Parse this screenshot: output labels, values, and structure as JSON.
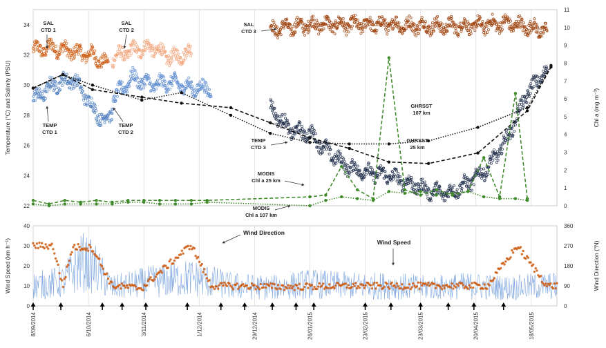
{
  "chart_data": [
    {
      "type": "scatter",
      "panel": "top",
      "ylabel_left": "Temperature (°C) and Salinity (PSU)",
      "ylabel_right": "Chl a (mg m⁻³)",
      "ylim_left": [
        22,
        35
      ],
      "ylim_right": [
        0,
        11
      ],
      "yticks_left": [
        "22",
        "24",
        "26",
        "28",
        "30",
        "32",
        "34"
      ],
      "yticks_right": [
        "0",
        "1",
        "2",
        "3",
        "4",
        "5",
        "6",
        "7",
        "8",
        "9",
        "10",
        "11"
      ],
      "xlim_days": [
        0,
        265
      ],
      "grid_vertical": true,
      "series": [
        {
          "name": "SAL CTD 1",
          "color": "#cc5a10",
          "x": [
            0,
            10,
            20,
            30,
            38
          ],
          "y": [
            32.3,
            32.5,
            32.2,
            32.0,
            31.3
          ]
        },
        {
          "name": "SAL CTD 2",
          "color": "#f2a57a",
          "x": [
            40,
            50,
            60,
            70,
            80
          ],
          "y": [
            31.8,
            32.3,
            32.5,
            31.8,
            32.2
          ]
        },
        {
          "name": "SAL CTD 3",
          "color": "#9c3e08",
          "x": [
            120,
            140,
            160,
            180,
            200,
            220,
            240,
            260
          ],
          "y": [
            33.7,
            34.0,
            34.0,
            34.0,
            33.9,
            33.9,
            34.1,
            33.6
          ]
        },
        {
          "name": "TEMP CTD 1",
          "color": "#4f7fbf",
          "x": [
            0,
            10,
            20,
            25,
            30,
            36,
            40
          ],
          "y": [
            29.0,
            30.0,
            30.4,
            29.6,
            28.5,
            27.6,
            28.2
          ]
        },
        {
          "name": "TEMP CTD 2",
          "color": "#5a8ad0",
          "x": [
            40,
            50,
            60,
            70,
            80,
            90
          ],
          "y": [
            29.0,
            30.5,
            30.0,
            30.2,
            29.8,
            29.8
          ]
        },
        {
          "name": "TEMP CTD 3",
          "color": "#1f2d4a",
          "x": [
            120,
            130,
            140,
            150,
            160,
            170,
            180,
            190,
            200,
            210,
            220,
            230,
            240,
            250,
            260
          ],
          "y": [
            28.5,
            27.0,
            26.8,
            25.5,
            24.5,
            24.2,
            24.0,
            23.5,
            23.0,
            22.8,
            23.5,
            24.5,
            26.5,
            29.5,
            31.0
          ]
        },
        {
          "name": "GHRSST 107 km",
          "color": "#111111",
          "style": "dotted",
          "x": [
            0,
            15,
            30,
            55,
            75,
            100,
            120,
            140,
            160,
            180,
            200,
            225,
            250,
            262
          ],
          "y": [
            29.8,
            30.7,
            30.0,
            29.0,
            29.5,
            28.0,
            26.8,
            26.2,
            26.1,
            26.1,
            26.3,
            27.2,
            28.5,
            31.3
          ]
        },
        {
          "name": "GHRSST 25 km",
          "color": "#111111",
          "style": "dashed",
          "x": [
            0,
            15,
            30,
            55,
            75,
            100,
            120,
            140,
            160,
            180,
            200,
            225,
            250,
            262
          ],
          "y": [
            29.8,
            30.7,
            29.7,
            29.2,
            28.8,
            28.5,
            27.5,
            26.5,
            25.8,
            24.9,
            24.8,
            25.5,
            28.3,
            31.2
          ]
        },
        {
          "name": "MODIS Chl a 25 km",
          "color": "#3f8a2a",
          "style": "dashed",
          "axis": "right",
          "x": [
            0,
            8,
            16,
            24,
            32,
            40,
            48,
            56,
            64,
            72,
            80,
            88,
            140,
            148,
            156,
            164,
            172,
            180,
            188,
            196,
            204,
            212,
            220,
            228,
            236,
            244,
            250
          ],
          "y": [
            0.3,
            0.1,
            0.3,
            0.2,
            0.3,
            0.2,
            0.3,
            0.3,
            0.3,
            0.3,
            0.3,
            0.3,
            0.5,
            0.6,
            2.2,
            0.9,
            0.4,
            8.3,
            0.9,
            0.6,
            0.9,
            0.6,
            0.8,
            2.7,
            0.5,
            6.3,
            0.4
          ]
        },
        {
          "name": "MODIS Chl a 107 km",
          "color": "#3f8a2a",
          "style": "dotted",
          "axis": "right",
          "x": [
            0,
            8,
            16,
            24,
            32,
            40,
            48,
            56,
            64,
            72,
            80,
            88,
            140,
            148,
            156,
            164,
            172,
            180,
            188,
            196,
            204,
            212,
            220,
            228,
            236,
            244,
            250
          ],
          "y": [
            0.1,
            0.0,
            0.1,
            0.1,
            0.1,
            0.1,
            0.2,
            0.2,
            0.1,
            0.1,
            0.1,
            0.2,
            0.0,
            0.3,
            0.5,
            0.4,
            0.3,
            0.8,
            0.7,
            0.8,
            0.6,
            0.7,
            0.8,
            0.5,
            0.4,
            0.4,
            0.3
          ]
        }
      ],
      "annotations": [
        "SAL",
        "CTD 1",
        "SAL",
        "CTD 2",
        "SAL",
        "CTD 3",
        "TEMP",
        "CTD 1",
        "TEMP",
        "CTD 2",
        "TEMP",
        "CTD 3",
        "GHRSST",
        "107 km",
        "GHRSST",
        "25 km",
        "MODIS",
        "Chl a 25 km",
        "MODIS",
        "Chl a 107 km"
      ]
    },
    {
      "type": "line",
      "panel": "bottom",
      "ylabel_left": "Wind Speed (km h⁻¹)",
      "ylabel_right": "Wind Direction (°N)",
      "ylim_left": [
        0,
        40
      ],
      "ylim_right": [
        0,
        360
      ],
      "yticks_left": [
        "0",
        "10",
        "20",
        "30",
        "40"
      ],
      "yticks_right": [
        "0",
        "90",
        "180",
        "270",
        "360"
      ],
      "xlim_days": [
        0,
        265
      ],
      "x_tick_days": [
        0,
        28,
        56,
        84,
        112,
        140,
        168,
        196,
        224,
        252
      ],
      "x_tick_labels": [
        "8/09/2014",
        "6/10/2014",
        "3/11/2014",
        "1/12/2014",
        "29/12/2014",
        "26/01/2015",
        "23/02/2015",
        "23/03/2015",
        "20/04/2015",
        "18/05/2015"
      ],
      "arrow_days": [
        0,
        14,
        35,
        45,
        57,
        78,
        95,
        107,
        121,
        133,
        142,
        168,
        181,
        196,
        210,
        223,
        238
      ],
      "series": [
        {
          "name": "Wind Speed",
          "color": "#7fa7df",
          "x": [
            0,
            15,
            25,
            32,
            40,
            60,
            80,
            100,
            120,
            140,
            160,
            180,
            200,
            220,
            240,
            260
          ],
          "y": [
            10,
            12,
            22,
            18,
            9,
            12,
            14,
            10,
            9,
            11,
            10,
            10,
            9,
            10,
            9,
            10
          ]
        },
        {
          "name": "Wind Direction",
          "color": "#cc5a10",
          "x": [
            0,
            10,
            15,
            20,
            30,
            40,
            55,
            80,
            90,
            100,
            130,
            160,
            190,
            230,
            245,
            260
          ],
          "y": [
            270,
            270,
            90,
            265,
            260,
            90,
            80,
            275,
            90,
            90,
            85,
            90,
            90,
            90,
            270,
            90
          ]
        }
      ],
      "annotations": [
        "Wind Direction",
        "Wind Speed"
      ]
    }
  ],
  "colors": {
    "sal_ctd1": "#cc5a10",
    "sal_ctd2": "#f2a57a",
    "sal_ctd3": "#9c3e08",
    "temp_ctd1": "#4f7fbf",
    "temp_ctd2": "#5a8ad0",
    "temp_ctd3": "#1f2d4a",
    "modis": "#3f8a2a",
    "wind_speed": "#7fa7df",
    "wind_direction": "#cc5a10"
  }
}
